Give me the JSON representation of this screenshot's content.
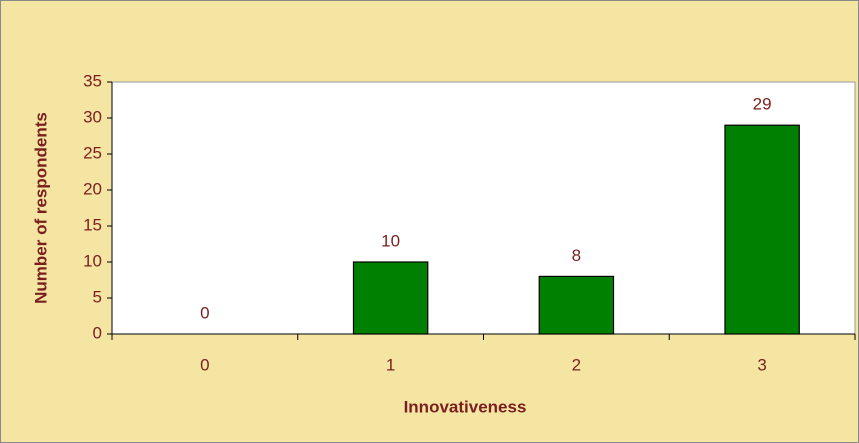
{
  "chart_data": {
    "type": "bar",
    "categories": [
      "0",
      "1",
      "2",
      "3"
    ],
    "values": [
      0,
      10,
      8,
      29
    ],
    "color": "#008000",
    "xlabel": "Innovativeness",
    "ylabel": "Number of respondents",
    "ylim": [
      0,
      35
    ],
    "yticks": [
      0,
      5,
      10,
      15,
      20,
      25,
      30,
      35
    ],
    "grid": false
  }
}
